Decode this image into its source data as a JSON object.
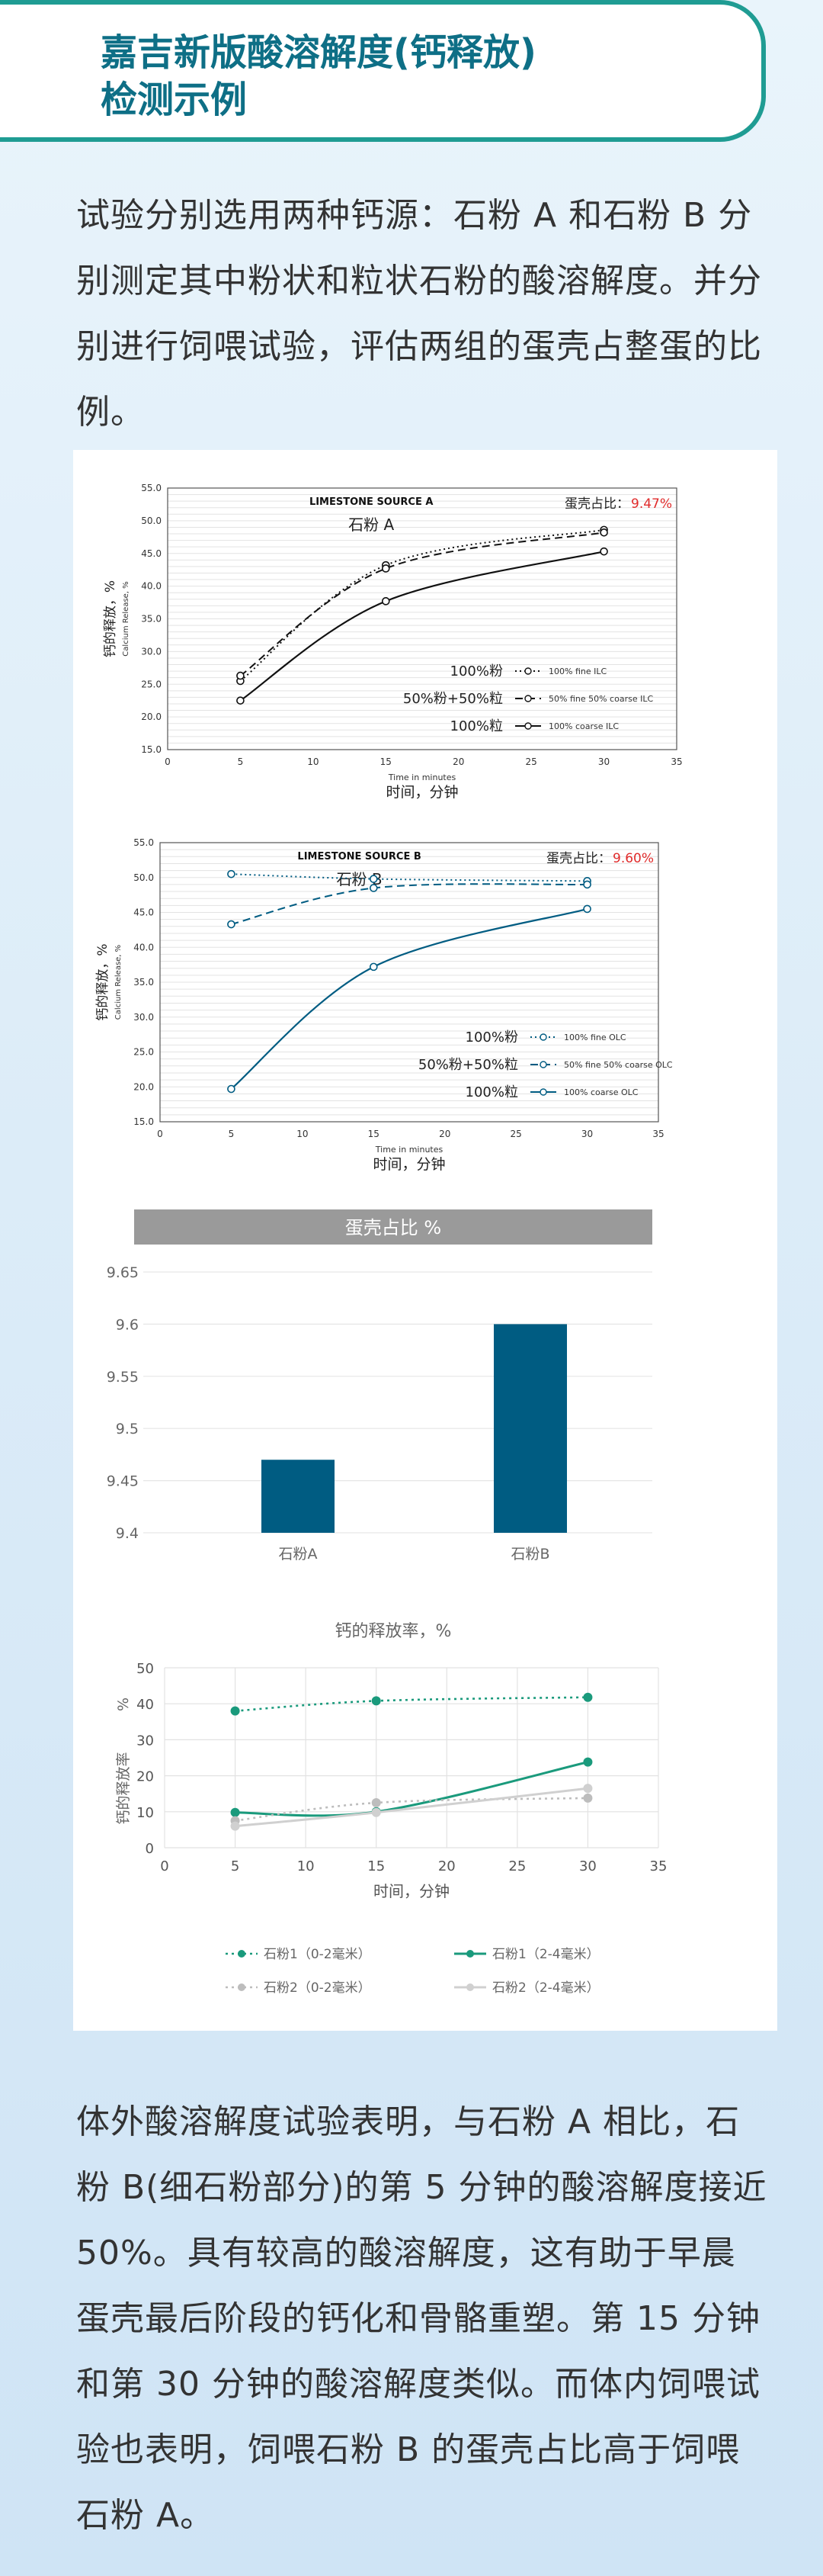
{
  "header": {
    "title": "嘉吉新版酸溶解度(钙释放)\n检测示例"
  },
  "intro": "试验分别选用两种钙源：石粉 A 和石粉 B 分别测定其中粉状和粒状石粉的酸溶解度。并分别进行饲喂试验，评估两组的蛋壳占整蛋的比例。",
  "conclusion": "体外酸溶解度试验表明，与石粉 A 相比，石粉 B(细石粉部分)的第 5 分钟的酸溶解度接近 50%。具有较高的酸溶解度，这有助于早晨蛋壳最后阶段的钙化和骨骼重塑。第 15 分钟和第 30 分钟的酸溶解度类似。而体内饲喂试验也表明，饲喂石粉 B 的蛋壳占比高于饲喂石粉 A。",
  "colors": {
    "teal": "#1f9c93",
    "navy": "#0e6f86",
    "bar": "#005c82",
    "red": "#e02b2b",
    "green": "#1a9a7c"
  },
  "chart_data": [
    {
      "type": "line",
      "title": "LIMESTONE SOURCE A",
      "subtitle": "石粉 A",
      "eggshell_label": "蛋壳占比：",
      "eggshell_value": "9.47%",
      "ylabel": "钙的释放，%",
      "ylabel2": "Calcium Release, %",
      "xlabel": "Time in minutes",
      "xlabel2": "时间，分钟",
      "xlim": [
        0,
        35
      ],
      "ylim": [
        15,
        55
      ],
      "xticks": [
        "0",
        "5",
        "10",
        "15",
        "20",
        "25",
        "30",
        "35"
      ],
      "yticks": [
        "15.0",
        "20.0",
        "25.0",
        "30.0",
        "35.0",
        "40.0",
        "45.0",
        "50.0",
        "55.0"
      ],
      "x": [
        5,
        15,
        30
      ],
      "series": [
        {
          "name": "100% fine ILC",
          "cn": "100%粉",
          "style": "dotted",
          "values": [
            25.5,
            43.2,
            48.6
          ]
        },
        {
          "name": "50% fine 50% coarse ILC",
          "cn": "50%粉+50%粒",
          "style": "dashed",
          "values": [
            26.3,
            42.7,
            48.2
          ]
        },
        {
          "name": "100% coarse ILC",
          "cn": "100%粒",
          "style": "solid",
          "values": [
            22.5,
            37.7,
            45.3
          ]
        }
      ]
    },
    {
      "type": "line",
      "title": "LIMESTONE SOURCE B",
      "subtitle": "石粉 B",
      "eggshell_label": "蛋壳占比：",
      "eggshell_value": "9.60%",
      "ylabel": "钙的释放，%",
      "ylabel2": "Calcium Release, %",
      "xlabel": "Time in minutes",
      "xlabel2": "时间，分钟",
      "xlim": [
        0,
        35
      ],
      "ylim": [
        15,
        55
      ],
      "xticks": [
        "0",
        "5",
        "10",
        "15",
        "20",
        "25",
        "30",
        "35"
      ],
      "yticks": [
        "15.0",
        "20.0",
        "25.0",
        "30.0",
        "35.0",
        "40.0",
        "45.0",
        "50.0",
        "55.0"
      ],
      "x": [
        5,
        15,
        30
      ],
      "series": [
        {
          "name": "100% fine OLC",
          "cn": "100%粉",
          "style": "dotted",
          "values": [
            50.5,
            49.8,
            49.5
          ]
        },
        {
          "name": "50% fine 50% coarse OLC",
          "cn": "50%粉+50%粒",
          "style": "dashed",
          "values": [
            43.3,
            48.5,
            49.0
          ]
        },
        {
          "name": "100% coarse OLC",
          "cn": "100%粒",
          "style": "solid",
          "values": [
            19.7,
            37.2,
            45.5
          ]
        }
      ]
    },
    {
      "type": "bar",
      "title": "蛋壳占比 %",
      "categories": [
        "石粉A",
        "石粉B"
      ],
      "values": [
        9.47,
        9.6
      ],
      "ylim": [
        9.4,
        9.65
      ],
      "yticks": [
        "9.4",
        "9.45",
        "9.5",
        "9.55",
        "9.6",
        "9.65"
      ]
    },
    {
      "type": "line",
      "title": "钙的释放率，%",
      "ylabel": "钙的释放率",
      "ylabel_unit": "%",
      "xlabel": "时间，分钟",
      "xlim": [
        0,
        35
      ],
      "ylim": [
        0,
        50
      ],
      "xticks": [
        "0",
        "5",
        "10",
        "15",
        "20",
        "25",
        "30",
        "35"
      ],
      "yticks": [
        "0",
        "10",
        "20",
        "30",
        "40",
        "50"
      ],
      "x": [
        5,
        15,
        30
      ],
      "series": [
        {
          "name": "石粉1（0-2毫米）",
          "style": "dotted",
          "color": "#1a9a7c",
          "values": [
            38.0,
            40.8,
            41.8
          ]
        },
        {
          "name": "石粉1（2-4毫米）",
          "style": "solid",
          "color": "#1a9a7c",
          "values": [
            9.8,
            10.0,
            23.8
          ]
        },
        {
          "name": "石粉2（0-2毫米）",
          "style": "dotted",
          "color": "#bdbdbd",
          "values": [
            7.5,
            12.5,
            13.8
          ]
        },
        {
          "name": "石粉2（2-4毫米）",
          "style": "solid",
          "color": "#d0d0d0",
          "values": [
            6.0,
            9.8,
            16.5
          ]
        }
      ]
    }
  ]
}
